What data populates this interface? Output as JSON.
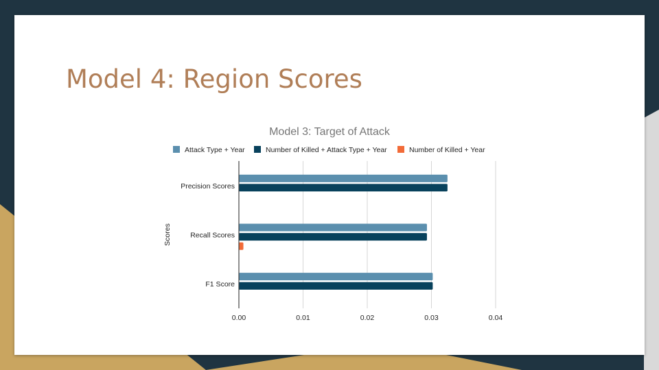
{
  "slide": {
    "title": "Model 4: Region Scores",
    "colors": {
      "title": "#b07e57",
      "background_dark": "#1f3441",
      "background_gold": "#c9a560",
      "background_light": "#d9d9d9"
    }
  },
  "chart_data": {
    "type": "bar",
    "orientation": "horizontal",
    "title": "Model 3: Target of Attack",
    "xlabel": "",
    "ylabel": "Scores",
    "categories": [
      "Precision Scores",
      "Recall Scores",
      "F1 Score"
    ],
    "series": [
      {
        "name": "Attack Type + Year",
        "color": "#5b8fae",
        "values": [
          0.0325,
          0.0293,
          0.0302
        ]
      },
      {
        "name": "Number of Killed + Attack Type + Year",
        "color": "#08415c",
        "values": [
          0.0325,
          0.0293,
          0.0302
        ]
      },
      {
        "name": "Number of Killed + Year",
        "color": "#f26b38",
        "values": [
          0,
          0.0007,
          0
        ]
      }
    ],
    "xlim": [
      0,
      0.04
    ],
    "xticks": [
      "0.00",
      "0.01",
      "0.02",
      "0.03",
      "0.04"
    ],
    "grid": true,
    "legend": "top"
  }
}
